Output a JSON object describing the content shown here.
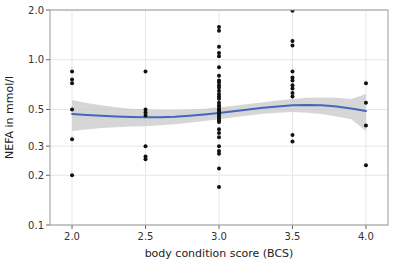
{
  "chart_data": {
    "type": "scatter",
    "xlabel": "body condition score (BCS)",
    "ylabel": "NEFA in mmol/l",
    "xlim": [
      1.85,
      4.15
    ],
    "ylim": [
      0.1,
      2.0
    ],
    "log": "y",
    "grid": true,
    "xticks": [
      {
        "value": 2.0,
        "label": "2.0"
      },
      2.5,
      {
        "value": 3.0,
        "label": "3.0"
      },
      3.5,
      {
        "value": 4.0,
        "label": "4.0"
      }
    ],
    "yticks": [
      0.1,
      0.2,
      0.3,
      0.5,
      {
        "value": 1.0,
        "label": "1.0"
      },
      {
        "value": 2.0,
        "label": "2.0"
      }
    ],
    "series": [
      {
        "type": "area",
        "color": "#c8c8c8",
        "x": [
          2.0,
          2.1,
          2.2,
          2.3,
          2.4,
          2.5,
          2.6,
          2.7,
          2.8,
          2.9,
          3.0,
          3.1,
          3.2,
          3.3,
          3.4,
          3.5,
          3.6,
          3.7,
          3.8,
          3.9,
          4.0
        ],
        "upper": [
          0.57,
          0.548,
          0.53,
          0.515,
          0.506,
          0.5,
          0.497,
          0.497,
          0.5,
          0.506,
          0.515,
          0.527,
          0.54,
          0.553,
          0.566,
          0.578,
          0.588,
          0.591,
          0.588,
          0.578,
          0.62
        ],
        "lower": [
          0.37,
          0.378,
          0.386,
          0.391,
          0.394,
          0.396,
          0.401,
          0.407,
          0.416,
          0.426,
          0.437,
          0.449,
          0.46,
          0.471,
          0.478,
          0.482,
          0.478,
          0.469,
          0.454,
          0.436,
          0.37
        ]
      },
      {
        "type": "line",
        "color": "#4169b8",
        "x": [
          2.0,
          2.1,
          2.2,
          2.3,
          2.4,
          2.5,
          2.6,
          2.7,
          2.8,
          2.9,
          3.0,
          3.1,
          3.2,
          3.3,
          3.4,
          3.5,
          3.6,
          3.7,
          3.8,
          3.9,
          4.0
        ],
        "values": [
          0.47,
          0.463,
          0.458,
          0.453,
          0.45,
          0.448,
          0.449,
          0.452,
          0.458,
          0.466,
          0.476,
          0.488,
          0.5,
          0.512,
          0.522,
          0.53,
          0.533,
          0.53,
          0.521,
          0.507,
          0.49
        ]
      },
      {
        "type": "scatter",
        "color": "#111111",
        "x": [
          2.0,
          2.0,
          2.0,
          2.0,
          2.0,
          2.0,
          2.5,
          2.5,
          2.5,
          2.5,
          2.5,
          2.5,
          2.5,
          3.0,
          3.0,
          3.0,
          3.0,
          3.0,
          3.0,
          3.0,
          3.0,
          3.0,
          3.0,
          3.0,
          3.0,
          3.0,
          3.0,
          3.0,
          3.0,
          3.0,
          3.0,
          3.0,
          3.0,
          3.0,
          3.0,
          3.0,
          3.0,
          3.0,
          3.0,
          3.0,
          3.0,
          3.0,
          3.0,
          3.0,
          3.0,
          3.0,
          3.0,
          3.0,
          3.0,
          3.5,
          3.5,
          3.5,
          3.5,
          3.5,
          3.5,
          3.5,
          3.5,
          3.5,
          3.5,
          3.5,
          3.5,
          4.0,
          4.0,
          4.0,
          4.0
        ],
        "values": [
          0.85,
          0.76,
          0.72,
          0.5,
          0.33,
          0.2,
          0.85,
          0.5,
          0.48,
          0.46,
          0.3,
          0.26,
          0.25,
          1.58,
          1.5,
          1.2,
          1.1,
          1.05,
          0.9,
          0.8,
          0.75,
          0.73,
          0.7,
          0.68,
          0.65,
          0.62,
          0.6,
          0.58,
          0.55,
          0.53,
          0.52,
          0.5,
          0.5,
          0.49,
          0.48,
          0.47,
          0.46,
          0.45,
          0.44,
          0.43,
          0.42,
          0.38,
          0.36,
          0.34,
          0.3,
          0.28,
          0.27,
          0.22,
          0.17,
          1.98,
          1.3,
          1.22,
          0.85,
          0.78,
          0.75,
          0.7,
          0.67,
          0.63,
          0.6,
          0.35,
          0.32,
          0.72,
          0.55,
          0.4,
          0.23
        ]
      }
    ]
  }
}
